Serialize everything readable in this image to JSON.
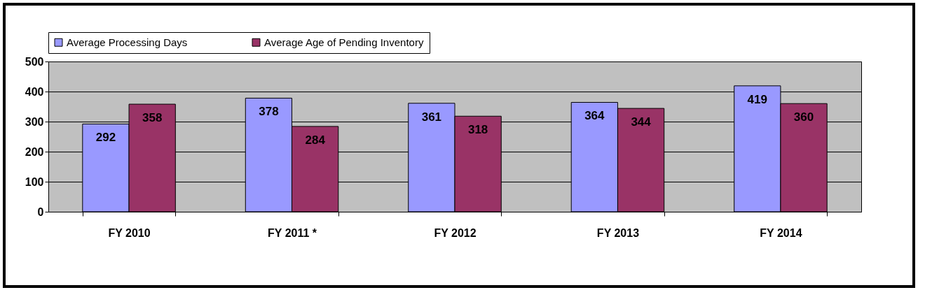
{
  "chart_data": {
    "type": "bar",
    "categories": [
      "FY 2010",
      "FY 2011 *",
      "FY 2012",
      "FY 2013",
      "FY 2014"
    ],
    "series": [
      {
        "name": "Average Processing Days",
        "color": "#9999ff",
        "values": [
          292,
          378,
          361,
          364,
          419
        ]
      },
      {
        "name": "Average Age of Pending Inventory",
        "color": "#993366",
        "values": [
          358,
          284,
          318,
          344,
          360
        ]
      }
    ],
    "ylim": [
      0,
      500
    ],
    "yticks": [
      0,
      100,
      200,
      300,
      400,
      500
    ],
    "grid": "y",
    "legend": "top",
    "data_labels": true
  }
}
